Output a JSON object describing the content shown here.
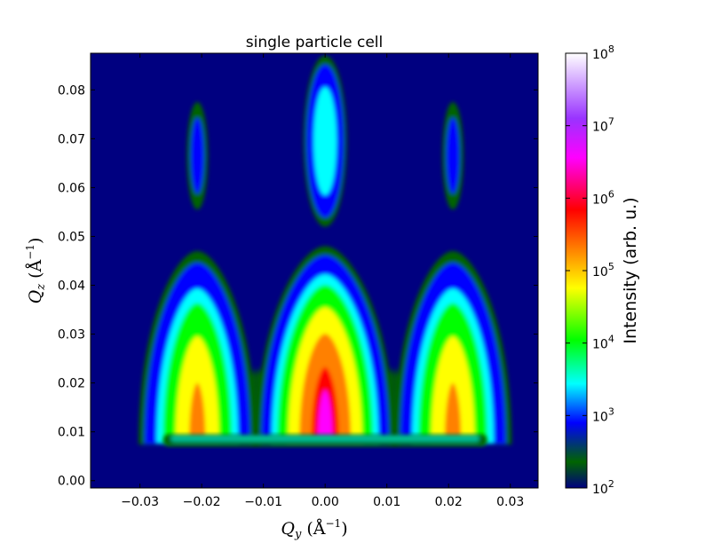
{
  "chart_data": {
    "type": "heatmap",
    "title": "single particle cell",
    "xlabel": "Q_y (Å^-1)",
    "ylabel": "Q_z (Å^-1)",
    "xlim": [
      -0.038,
      0.0345
    ],
    "ylim": [
      -0.0015,
      0.0875
    ],
    "x_ticks": [
      -0.03,
      -0.02,
      -0.01,
      0.0,
      0.01,
      0.02,
      0.03
    ],
    "x_tick_labels": [
      "−0.03",
      "−0.02",
      "−0.01",
      "0.00",
      "0.01",
      "0.02",
      "0.03"
    ],
    "y_ticks": [
      0.0,
      0.01,
      0.02,
      0.03,
      0.04,
      0.05,
      0.06,
      0.07,
      0.08
    ],
    "y_tick_labels": [
      "0.00",
      "0.01",
      "0.02",
      "0.03",
      "0.04",
      "0.05",
      "0.06",
      "0.07",
      "0.08"
    ],
    "colorbar": {
      "label": "Intensity (arb. u.)",
      "scale": "log",
      "range": [
        100,
        100000000
      ],
      "ticks": [
        {
          "exp": 2,
          "base": "10",
          "sup": "2"
        },
        {
          "exp": 3,
          "base": "10",
          "sup": "3"
        },
        {
          "exp": 4,
          "base": "10",
          "sup": "4"
        },
        {
          "exp": 5,
          "base": "10",
          "sup": "5"
        },
        {
          "exp": 6,
          "base": "10",
          "sup": "6"
        },
        {
          "exp": 7,
          "base": "10",
          "sup": "7"
        },
        {
          "exp": 8,
          "base": "10",
          "sup": "8"
        }
      ],
      "colormap": "gist_ncar",
      "colors": [
        "#000080",
        "#006400",
        "#0000ff",
        "#00ffff",
        "#00ff00",
        "#ffff00",
        "#ff8000",
        "#ff0000",
        "#ff00ff",
        "#9933ff",
        "#ffffff"
      ]
    },
    "peaks": [
      {
        "qy": -0.0207,
        "qz": 0.0665,
        "qz_min": 0.055,
        "qz_max": 0.077,
        "peak_exp": 2.5
      },
      {
        "qy": 0.0,
        "qz": 0.0695,
        "qz_min": 0.052,
        "qz_max": 0.087,
        "peak_exp": 3.3
      },
      {
        "qy": 0.0207,
        "qz": 0.0665,
        "qz_min": 0.055,
        "qz_max": 0.077,
        "peak_exp": 2.5
      }
    ],
    "rods": [
      {
        "qy": -0.0207,
        "qz_base": 0.0085,
        "qz_top": 0.047,
        "peak_exp": 5.0
      },
      {
        "qy": 0.0,
        "qz_base": 0.0085,
        "qz_top": 0.048,
        "peak_exp": 6.0
      },
      {
        "qy": 0.0207,
        "qz_base": 0.0085,
        "qz_top": 0.047,
        "peak_exp": 5.0
      }
    ],
    "grid": false
  }
}
